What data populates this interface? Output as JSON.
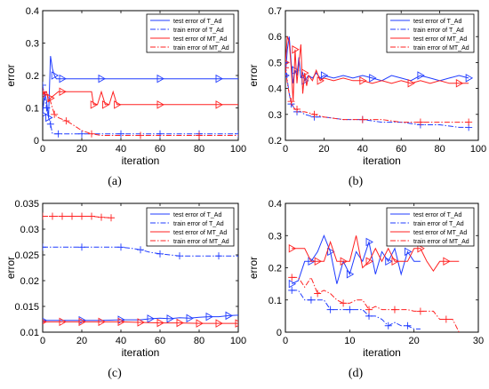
{
  "legend_labels": [
    "test error of T_Ad",
    "train error of T_Ad",
    "test error of MT_Ad",
    "train error of MT_Ad"
  ],
  "colors": {
    "T_Ad": "#1f3bff",
    "MT_Ad": "#ff2020",
    "axis": "#000000",
    "grid_bg": "#ffffff"
  },
  "chart_data": [
    {
      "type": "line",
      "caption": "(a)",
      "xlabel": "iteration",
      "ylabel": "error",
      "xlim": [
        0,
        100
      ],
      "ylim": [
        0,
        0.4
      ],
      "xticks": [
        "0",
        "20",
        "40",
        "60",
        "80",
        "100"
      ],
      "yticks": [
        "0",
        "0.1",
        "0.2",
        "0.3",
        "0.4"
      ],
      "legend": "top-right",
      "series": [
        {
          "name": "test error of T_Ad",
          "color": "#1f3bff",
          "style": "solid",
          "marker": "triangle-right",
          "x": [
            0,
            1,
            2,
            3,
            4,
            5,
            6,
            7,
            8,
            10,
            12,
            20,
            30,
            40,
            50,
            60,
            70,
            80,
            90,
            100
          ],
          "y": [
            0.08,
            0.15,
            0.12,
            0.07,
            0.26,
            0.22,
            0.2,
            0.19,
            0.19,
            0.19,
            0.19,
            0.19,
            0.19,
            0.19,
            0.19,
            0.19,
            0.19,
            0.19,
            0.19,
            0.19
          ]
        },
        {
          "name": "train error of T_Ad",
          "color": "#1f3bff",
          "style": "dashdot",
          "marker": "plus",
          "x": [
            0,
            1,
            2,
            3,
            4,
            5,
            8,
            10,
            20,
            30,
            40,
            50,
            60,
            70,
            80,
            90,
            100
          ],
          "y": [
            0.17,
            0.13,
            0.1,
            0.07,
            0.05,
            0.02,
            0.02,
            0.02,
            0.02,
            0.02,
            0.02,
            0.02,
            0.02,
            0.02,
            0.02,
            0.02,
            0.02
          ]
        },
        {
          "name": "test error of MT_Ad",
          "color": "#ff2020",
          "style": "solid",
          "marker": "triangle-right",
          "x": [
            0,
            2,
            3,
            4,
            6,
            8,
            10,
            20,
            25,
            26,
            28,
            30,
            32,
            34,
            36,
            38,
            40,
            50,
            60,
            70,
            80,
            90,
            100
          ],
          "y": [
            0.14,
            0.15,
            0.12,
            0.13,
            0.14,
            0.15,
            0.15,
            0.15,
            0.15,
            0.11,
            0.11,
            0.15,
            0.11,
            0.11,
            0.15,
            0.11,
            0.11,
            0.11,
            0.11,
            0.11,
            0.11,
            0.11,
            0.11
          ]
        },
        {
          "name": "train error of MT_Ad",
          "color": "#ff2020",
          "style": "dashdot",
          "marker": "plus",
          "x": [
            0,
            2,
            4,
            6,
            8,
            10,
            12,
            15,
            20,
            25,
            30,
            40,
            50,
            60,
            70,
            80,
            90,
            100
          ],
          "y": [
            0.15,
            0.14,
            0.12,
            0.08,
            0.07,
            0.065,
            0.06,
            0.05,
            0.03,
            0.02,
            0.015,
            0.015,
            0.015,
            0.015,
            0.015,
            0.015,
            0.015,
            0.015
          ]
        }
      ]
    },
    {
      "type": "line",
      "caption": "(b)",
      "xlabel": "iteration",
      "ylabel": "error",
      "xlim": [
        0,
        100
      ],
      "ylim": [
        0.2,
        0.7
      ],
      "xticks": [
        "0",
        "20",
        "40",
        "60",
        "80",
        "100"
      ],
      "yticks": [
        "0.2",
        "0.3",
        "0.4",
        "0.5",
        "0.6",
        "0.7"
      ],
      "legend": "top-right",
      "series": [
        {
          "name": "test error of T_Ad",
          "color": "#1f3bff",
          "style": "solid",
          "marker": "triangle-right",
          "x": [
            0,
            1,
            2,
            3,
            4,
            5,
            6,
            7,
            8,
            9,
            10,
            12,
            14,
            16,
            18,
            20,
            25,
            30,
            35,
            40,
            45,
            50,
            55,
            60,
            65,
            70,
            75,
            80,
            85,
            90,
            95
          ],
          "y": [
            0.45,
            0.55,
            0.6,
            0.5,
            0.42,
            0.47,
            0.45,
            0.52,
            0.44,
            0.46,
            0.43,
            0.45,
            0.44,
            0.46,
            0.44,
            0.45,
            0.44,
            0.45,
            0.44,
            0.45,
            0.44,
            0.43,
            0.45,
            0.44,
            0.43,
            0.45,
            0.44,
            0.43,
            0.44,
            0.45,
            0.44
          ]
        },
        {
          "name": "train error of T_Ad",
          "color": "#1f3bff",
          "style": "dashdot",
          "marker": "plus",
          "x": [
            0,
            1,
            2,
            3,
            4,
            5,
            6,
            8,
            10,
            15,
            20,
            30,
            40,
            50,
            60,
            70,
            80,
            90,
            95
          ],
          "y": [
            0.5,
            0.43,
            0.38,
            0.34,
            0.33,
            0.32,
            0.31,
            0.31,
            0.3,
            0.29,
            0.29,
            0.28,
            0.28,
            0.27,
            0.27,
            0.26,
            0.26,
            0.25,
            0.25
          ]
        },
        {
          "name": "test error of MT_Ad",
          "color": "#ff2020",
          "style": "solid",
          "marker": "triangle-right",
          "x": [
            0,
            1,
            2,
            3,
            4,
            5,
            6,
            7,
            8,
            9,
            10,
            11,
            12,
            14,
            16,
            18,
            20,
            25,
            30,
            35,
            40,
            45,
            50,
            55,
            60,
            65,
            70,
            75,
            80,
            85,
            90,
            95
          ],
          "y": [
            0.5,
            0.6,
            0.58,
            0.48,
            0.35,
            0.55,
            0.42,
            0.5,
            0.57,
            0.38,
            0.46,
            0.41,
            0.45,
            0.43,
            0.47,
            0.43,
            0.44,
            0.43,
            0.44,
            0.43,
            0.43,
            0.42,
            0.43,
            0.42,
            0.43,
            0.42,
            0.43,
            0.42,
            0.43,
            0.42,
            0.42,
            0.42
          ]
        },
        {
          "name": "train error of MT_Ad",
          "color": "#ff2020",
          "style": "dashdot",
          "marker": "plus",
          "x": [
            0,
            1,
            2,
            3,
            4,
            5,
            6,
            8,
            10,
            15,
            20,
            30,
            40,
            50,
            60,
            70,
            80,
            90,
            95
          ],
          "y": [
            0.48,
            0.42,
            0.38,
            0.35,
            0.33,
            0.32,
            0.32,
            0.31,
            0.31,
            0.3,
            0.29,
            0.28,
            0.28,
            0.28,
            0.27,
            0.27,
            0.27,
            0.27,
            0.27
          ]
        }
      ]
    },
    {
      "type": "line",
      "caption": "(c)",
      "xlabel": "iteration",
      "ylabel": "error",
      "xlim": [
        0,
        100
      ],
      "ylim": [
        0.01,
        0.035
      ],
      "xticks": [
        "0",
        "20",
        "40",
        "60",
        "80",
        "100"
      ],
      "yticks": [
        "0.01",
        "0.015",
        "0.02",
        "0.025",
        "0.03",
        "0.035"
      ],
      "legend": "top-right",
      "series": [
        {
          "name": "test error of T_Ad",
          "color": "#1f3bff",
          "style": "solid",
          "marker": "triangle-right",
          "x": [
            0,
            10,
            20,
            30,
            40,
            50,
            55,
            60,
            65,
            70,
            75,
            80,
            85,
            90,
            95,
            100
          ],
          "y": [
            0.0123,
            0.0123,
            0.0123,
            0.0123,
            0.0124,
            0.0124,
            0.0126,
            0.0127,
            0.0126,
            0.0128,
            0.0127,
            0.0129,
            0.013,
            0.013,
            0.0132,
            0.0133
          ]
        },
        {
          "name": "train error of T_Ad",
          "color": "#1f3bff",
          "style": "dashdot",
          "marker": "plus",
          "x": [
            0,
            10,
            20,
            30,
            40,
            45,
            50,
            55,
            60,
            65,
            70,
            80,
            90,
            100
          ],
          "y": [
            0.0265,
            0.0265,
            0.0265,
            0.0265,
            0.0265,
            0.0263,
            0.026,
            0.0255,
            0.0252,
            0.025,
            0.0248,
            0.0248,
            0.0248,
            0.0248
          ]
        },
        {
          "name": "test error of MT_Ad",
          "color": "#ff2020",
          "style": "solid",
          "marker": "triangle-right",
          "x": [
            0,
            10,
            20,
            30,
            40,
            50,
            60,
            70,
            80,
            90,
            100
          ],
          "y": [
            0.012,
            0.012,
            0.012,
            0.012,
            0.012,
            0.0119,
            0.0118,
            0.0118,
            0.0117,
            0.0117,
            0.0117
          ]
        },
        {
          "name": "train error of MT_Ad",
          "color": "#ff2020",
          "style": "dashdot",
          "marker": "plus",
          "x": [
            0,
            5,
            10,
            15,
            20,
            25,
            30,
            35
          ],
          "y": [
            0.0325,
            0.0325,
            0.0325,
            0.0325,
            0.0325,
            0.0325,
            0.0323,
            0.0322
          ]
        }
      ]
    },
    {
      "type": "line",
      "caption": "(d)",
      "xlabel": "iteration",
      "ylabel": "error",
      "xlim": [
        0,
        30
      ],
      "ylim": [
        0,
        0.4
      ],
      "xticks": [
        "0",
        "10",
        "20",
        "30"
      ],
      "yticks": [
        "0",
        "0.1",
        "0.2",
        "0.3",
        "0.4"
      ],
      "legend": "top-right",
      "series": [
        {
          "name": "test error of T_Ad",
          "color": "#1f3bff",
          "style": "solid",
          "marker": "triangle-right",
          "x": [
            1,
            2,
            3,
            4,
            5,
            6,
            7,
            8,
            9,
            10,
            11,
            12,
            13,
            14,
            15,
            16,
            17,
            18,
            19,
            20,
            21
          ],
          "y": [
            0.15,
            0.16,
            0.22,
            0.22,
            0.25,
            0.3,
            0.25,
            0.15,
            0.22,
            0.18,
            0.25,
            0.22,
            0.28,
            0.18,
            0.25,
            0.22,
            0.26,
            0.18,
            0.25,
            0.22,
            0.22
          ]
        },
        {
          "name": "train error of T_Ad",
          "color": "#1f3bff",
          "style": "dashdot",
          "marker": "plus",
          "x": [
            1,
            2,
            3,
            4,
            5,
            6,
            7,
            8,
            9,
            10,
            11,
            12,
            13,
            14,
            15,
            16,
            17,
            18,
            19,
            20,
            21
          ],
          "y": [
            0.13,
            0.13,
            0.1,
            0.1,
            0.1,
            0.1,
            0.07,
            0.07,
            0.07,
            0.07,
            0.07,
            0.07,
            0.05,
            0.05,
            0.04,
            0.02,
            0.03,
            0.02,
            0.02,
            0.01,
            0.01
          ]
        },
        {
          "name": "test error of MT_Ad",
          "color": "#ff2020",
          "style": "solid",
          "marker": "triangle-right",
          "x": [
            1,
            2,
            3,
            4,
            5,
            6,
            7,
            8,
            9,
            10,
            11,
            12,
            13,
            14,
            15,
            16,
            17,
            18,
            19,
            20,
            21,
            22,
            23,
            24,
            25,
            26,
            27
          ],
          "y": [
            0.26,
            0.26,
            0.26,
            0.22,
            0.22,
            0.22,
            0.28,
            0.22,
            0.22,
            0.22,
            0.3,
            0.2,
            0.22,
            0.26,
            0.22,
            0.26,
            0.22,
            0.22,
            0.22,
            0.26,
            0.26,
            0.22,
            0.19,
            0.22,
            0.22,
            0.22,
            0.22
          ]
        },
        {
          "name": "train error of MT_Ad",
          "color": "#ff2020",
          "style": "dashdot",
          "marker": "plus",
          "x": [
            1,
            2,
            3,
            4,
            5,
            6,
            7,
            8,
            9,
            10,
            11,
            12,
            13,
            14,
            15,
            16,
            17,
            18,
            19,
            20,
            21,
            22,
            23,
            24,
            25,
            26,
            27
          ],
          "y": [
            0.17,
            0.17,
            0.14,
            0.17,
            0.12,
            0.13,
            0.12,
            0.1,
            0.09,
            0.09,
            0.1,
            0.1,
            0.07,
            0.08,
            0.07,
            0.07,
            0.07,
            0.07,
            0.07,
            0.065,
            0.065,
            0.065,
            0.065,
            0.04,
            0.04,
            0.04,
            0.0
          ]
        }
      ]
    }
  ]
}
